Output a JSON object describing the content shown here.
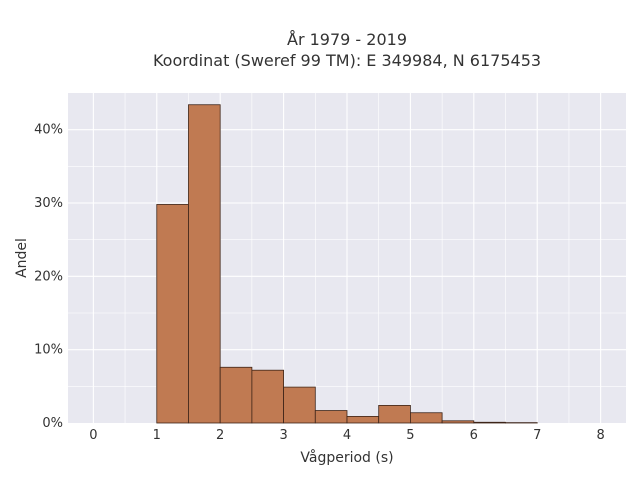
{
  "chart_data": {
    "type": "bar",
    "title_line1": "År 1979 - 2019",
    "title_line2": "Koordinat (Sweref 99 TM): E 349984, N 6175453",
    "xlabel": "Vågperiod (s)",
    "ylabel": "Andel",
    "xlim": [
      -0.4,
      8.4
    ],
    "ylim": [
      0,
      45
    ],
    "x_ticks": [
      0,
      1,
      2,
      3,
      4,
      5,
      6,
      7,
      8
    ],
    "y_ticks": [
      0,
      10,
      20,
      30,
      40
    ],
    "y_tick_labels": [
      "0%",
      "10%",
      "20%",
      "30%",
      "40%"
    ],
    "bin_width": 0.5,
    "bins": [
      {
        "start": 1.0,
        "value": 29.8
      },
      {
        "start": 1.5,
        "value": 43.4
      },
      {
        "start": 2.0,
        "value": 7.6
      },
      {
        "start": 2.5,
        "value": 7.2
      },
      {
        "start": 3.0,
        "value": 4.9
      },
      {
        "start": 3.5,
        "value": 1.7
      },
      {
        "start": 4.0,
        "value": 0.9
      },
      {
        "start": 4.5,
        "value": 2.4
      },
      {
        "start": 5.0,
        "value": 1.4
      },
      {
        "start": 5.5,
        "value": 0.3
      },
      {
        "start": 6.0,
        "value": 0.1
      },
      {
        "start": 6.5,
        "value": 0.05
      }
    ],
    "bar_color": "#c07a52",
    "bar_edge_color": "#3d2418",
    "plot_background": "#e8e8f0",
    "grid": true,
    "grid_color": "#ffffff"
  }
}
